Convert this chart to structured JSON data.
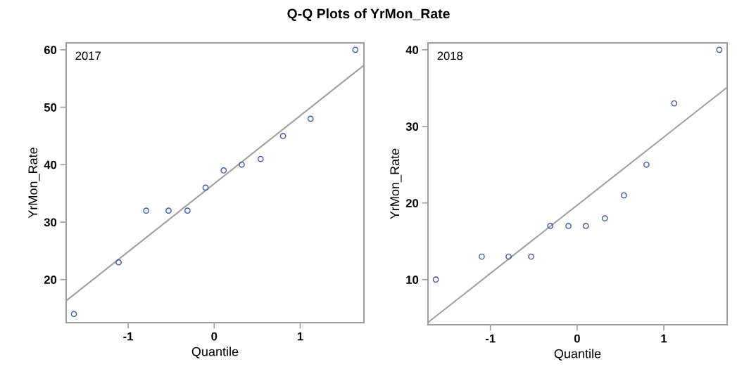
{
  "chart_data": [
    {
      "type": "scatter",
      "title": "Q-Q Plots of YrMon_Rate",
      "xlabel": "Quantile",
      "ylabel": "YrMon_Rate",
      "annotations": [
        "2017"
      ],
      "xlim": [
        -1.72,
        1.74
      ],
      "ylim": [
        12.5,
        61.2
      ],
      "xticks": [
        -1,
        0,
        1
      ],
      "yticks": [
        20,
        30,
        40,
        50,
        60
      ],
      "grid": false,
      "series": [
        {
          "marker": "circle",
          "color": "#3b5ba5",
          "x": [
            -1.63,
            -1.11,
            -0.79,
            -0.53,
            -0.31,
            -0.1,
            0.11,
            0.32,
            0.54,
            0.8,
            1.12,
            1.64
          ],
          "values": [
            14,
            23,
            32,
            32,
            32,
            36,
            39,
            40,
            41,
            45,
            48,
            60
          ]
        },
        {
          "type": "line",
          "color": "#a0a0a0",
          "marker": "none",
          "line_style": "solid",
          "x": [
            -1.72,
            1.74
          ],
          "values": [
            16.3,
            57.3
          ]
        }
      ]
    },
    {
      "type": "scatter",
      "xlabel": "Quantile",
      "ylabel": "YrMon_Rate",
      "annotations": [
        "2018"
      ],
      "xlim": [
        -1.72,
        1.73
      ],
      "ylim": [
        4.1,
        40.9
      ],
      "xticks": [
        -1,
        0,
        1
      ],
      "yticks": [
        10,
        20,
        30,
        40
      ],
      "grid": false,
      "series": [
        {
          "marker": "circle",
          "color": "#3b5ba5",
          "x": [
            -1.63,
            -1.1,
            -0.79,
            -0.53,
            -0.31,
            -0.1,
            0.1,
            0.32,
            0.54,
            0.8,
            1.12,
            1.64
          ],
          "values": [
            10,
            13,
            13,
            13,
            17,
            17,
            17,
            18,
            21,
            25,
            33,
            40
          ]
        },
        {
          "type": "line",
          "color": "#a0a0a0",
          "marker": "none",
          "line_style": "solid",
          "x": [
            -1.72,
            1.73
          ],
          "values": [
            4.4,
            35.1
          ]
        }
      ]
    }
  ]
}
